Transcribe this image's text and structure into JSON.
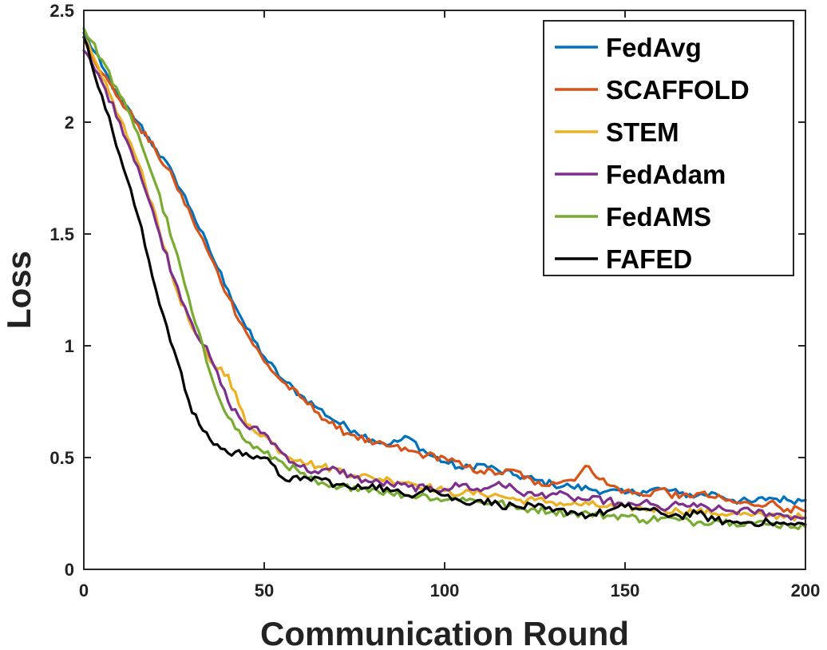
{
  "chart_data": {
    "type": "line",
    "title": "",
    "xlabel": "Communication Round",
    "ylabel": "Loss",
    "xlim": [
      0,
      200
    ],
    "ylim": [
      0,
      2.5
    ],
    "xticks": [
      0,
      50,
      100,
      150,
      200
    ],
    "yticks": [
      0,
      0.5,
      1,
      1.5,
      2,
      2.5
    ],
    "xtick_labels": [
      "0",
      "50",
      "100",
      "150",
      "200"
    ],
    "ytick_labels": [
      "0",
      "0.5",
      "1",
      "1.5",
      "2",
      "2.5"
    ],
    "grid": false,
    "legend_position": "top-right",
    "series": [
      {
        "name": "FedAvg",
        "color": "#0072BD",
        "x": [
          0,
          5,
          10,
          15,
          20,
          25,
          30,
          35,
          40,
          45,
          50,
          55,
          60,
          65,
          70,
          75,
          80,
          85,
          90,
          95,
          100,
          105,
          110,
          115,
          120,
          125,
          130,
          135,
          140,
          145,
          150,
          155,
          160,
          165,
          170,
          175,
          180,
          185,
          190,
          195,
          200
        ],
        "y": [
          2.4,
          2.25,
          2.1,
          2.0,
          1.88,
          1.76,
          1.6,
          1.42,
          1.25,
          1.08,
          0.95,
          0.85,
          0.78,
          0.72,
          0.66,
          0.62,
          0.58,
          0.56,
          0.59,
          0.52,
          0.48,
          0.45,
          0.47,
          0.44,
          0.42,
          0.4,
          0.38,
          0.37,
          0.36,
          0.35,
          0.34,
          0.35,
          0.36,
          0.34,
          0.33,
          0.34,
          0.31,
          0.3,
          0.32,
          0.31,
          0.31
        ]
      },
      {
        "name": "SCAFFOLD",
        "color": "#D95319",
        "x": [
          0,
          5,
          10,
          15,
          20,
          25,
          30,
          35,
          40,
          45,
          50,
          55,
          60,
          65,
          70,
          75,
          80,
          85,
          90,
          95,
          100,
          105,
          110,
          115,
          120,
          125,
          130,
          135,
          140,
          145,
          150,
          155,
          160,
          165,
          170,
          175,
          180,
          185,
          190,
          195,
          200
        ],
        "y": [
          2.38,
          2.22,
          2.1,
          1.99,
          1.87,
          1.74,
          1.57,
          1.4,
          1.22,
          1.06,
          0.93,
          0.84,
          0.77,
          0.7,
          0.63,
          0.6,
          0.56,
          0.55,
          0.53,
          0.51,
          0.5,
          0.46,
          0.44,
          0.43,
          0.44,
          0.38,
          0.39,
          0.4,
          0.46,
          0.38,
          0.35,
          0.33,
          0.36,
          0.32,
          0.34,
          0.32,
          0.3,
          0.29,
          0.3,
          0.27,
          0.26
        ]
      },
      {
        "name": "STEM",
        "color": "#EDB120",
        "x": [
          0,
          5,
          10,
          15,
          20,
          25,
          30,
          35,
          40,
          45,
          50,
          55,
          60,
          65,
          70,
          75,
          80,
          85,
          90,
          95,
          100,
          105,
          110,
          115,
          120,
          125,
          130,
          135,
          140,
          145,
          150,
          155,
          160,
          165,
          170,
          175,
          180,
          185,
          190,
          195,
          200
        ],
        "y": [
          2.38,
          2.2,
          2.02,
          1.82,
          1.58,
          1.28,
          1.08,
          0.93,
          0.87,
          0.65,
          0.6,
          0.52,
          0.49,
          0.46,
          0.45,
          0.42,
          0.41,
          0.4,
          0.39,
          0.37,
          0.35,
          0.34,
          0.34,
          0.33,
          0.31,
          0.31,
          0.3,
          0.29,
          0.29,
          0.28,
          0.28,
          0.27,
          0.27,
          0.26,
          0.26,
          0.25,
          0.25,
          0.24,
          0.24,
          0.24,
          0.23
        ]
      },
      {
        "name": "FedAdam",
        "color": "#7E2F8E",
        "x": [
          0,
          5,
          10,
          15,
          20,
          25,
          30,
          35,
          40,
          45,
          50,
          55,
          60,
          65,
          70,
          75,
          80,
          85,
          90,
          95,
          100,
          105,
          110,
          115,
          120,
          125,
          130,
          135,
          140,
          145,
          150,
          155,
          160,
          165,
          170,
          175,
          180,
          185,
          190,
          195,
          200
        ],
        "y": [
          2.32,
          2.18,
          2.0,
          1.8,
          1.55,
          1.3,
          1.1,
          0.95,
          0.75,
          0.64,
          0.61,
          0.52,
          0.46,
          0.43,
          0.45,
          0.41,
          0.39,
          0.38,
          0.37,
          0.36,
          0.36,
          0.38,
          0.35,
          0.39,
          0.35,
          0.33,
          0.34,
          0.32,
          0.31,
          0.31,
          0.28,
          0.3,
          0.27,
          0.29,
          0.28,
          0.27,
          0.26,
          0.26,
          0.25,
          0.24,
          0.23
        ]
      },
      {
        "name": "FedAMS",
        "color": "#77AC30",
        "x": [
          0,
          5,
          10,
          15,
          20,
          25,
          30,
          35,
          40,
          45,
          50,
          55,
          60,
          65,
          70,
          75,
          80,
          85,
          90,
          95,
          100,
          105,
          110,
          115,
          120,
          125,
          130,
          135,
          140,
          145,
          150,
          155,
          160,
          165,
          170,
          175,
          180,
          185,
          190,
          195,
          200
        ],
        "y": [
          2.42,
          2.28,
          2.12,
          1.95,
          1.72,
          1.45,
          1.15,
          0.88,
          0.68,
          0.57,
          0.52,
          0.48,
          0.43,
          0.38,
          0.36,
          0.37,
          0.36,
          0.34,
          0.33,
          0.33,
          0.31,
          0.32,
          0.3,
          0.3,
          0.27,
          0.27,
          0.26,
          0.25,
          0.25,
          0.24,
          0.24,
          0.22,
          0.23,
          0.22,
          0.21,
          0.22,
          0.21,
          0.21,
          0.2,
          0.2,
          0.19
        ]
      },
      {
        "name": "FAFED",
        "color": "#000000",
        "x": [
          0,
          5,
          10,
          15,
          20,
          25,
          30,
          35,
          40,
          45,
          50,
          55,
          60,
          65,
          70,
          75,
          80,
          85,
          90,
          95,
          100,
          105,
          110,
          115,
          120,
          125,
          130,
          135,
          140,
          145,
          150,
          155,
          160,
          165,
          170,
          175,
          180,
          185,
          190,
          195,
          200
        ],
        "y": [
          2.38,
          2.12,
          1.85,
          1.58,
          1.25,
          0.98,
          0.7,
          0.58,
          0.52,
          0.52,
          0.5,
          0.41,
          0.4,
          0.41,
          0.38,
          0.36,
          0.38,
          0.35,
          0.33,
          0.37,
          0.33,
          0.3,
          0.31,
          0.29,
          0.28,
          0.28,
          0.26,
          0.26,
          0.24,
          0.26,
          0.28,
          0.27,
          0.25,
          0.24,
          0.25,
          0.22,
          0.21,
          0.21,
          0.21,
          0.2,
          0.2
        ]
      }
    ]
  }
}
